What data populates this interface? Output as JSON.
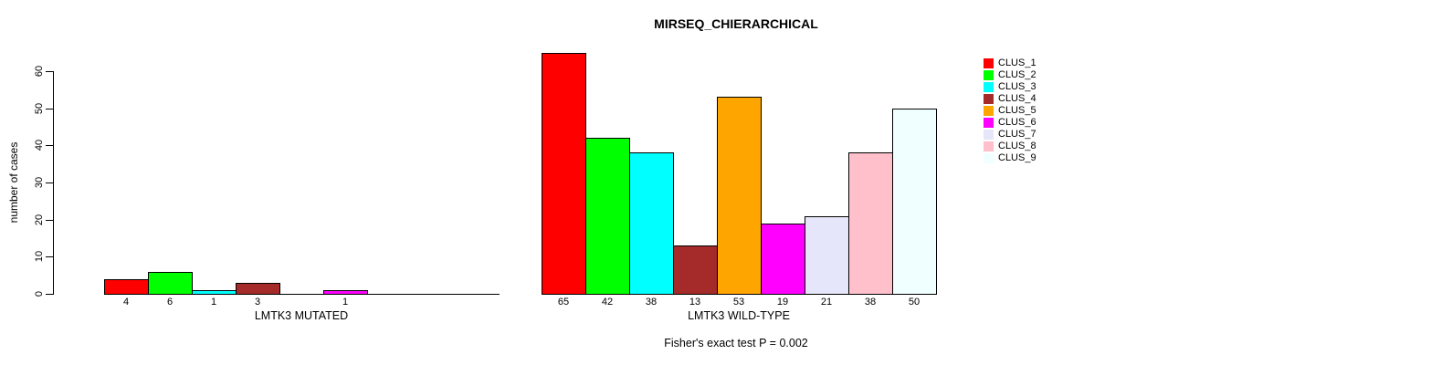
{
  "chart_data": {
    "type": "bar",
    "title": "MIRSEQ_CHIERARCHICAL",
    "ylabel": "number of cases",
    "ylim": [
      0,
      60
    ],
    "yticks": [
      0,
      10,
      20,
      30,
      40,
      50,
      60
    ],
    "grid": false,
    "legend_position": "right",
    "categories": [
      "CLUS_1",
      "CLUS_2",
      "CLUS_3",
      "CLUS_4",
      "CLUS_5",
      "CLUS_6",
      "CLUS_7",
      "CLUS_8",
      "CLUS_9"
    ],
    "colors": [
      "#FF0000",
      "#00FF00",
      "#00FFFF",
      "#A52A2A",
      "#FFA500",
      "#FF00FF",
      "#E6E6FA",
      "#FFC0CB",
      "#F0FFFF"
    ],
    "series": [
      {
        "name": "LMTK3 MUTATED",
        "values": [
          4,
          6,
          1,
          3,
          0,
          1,
          0,
          0,
          0
        ]
      },
      {
        "name": "LMTK3 WILD-TYPE",
        "values": [
          65,
          42,
          38,
          13,
          53,
          19,
          21,
          38,
          50
        ]
      }
    ],
    "annotation": "Fisher's exact test P = 0.002"
  }
}
